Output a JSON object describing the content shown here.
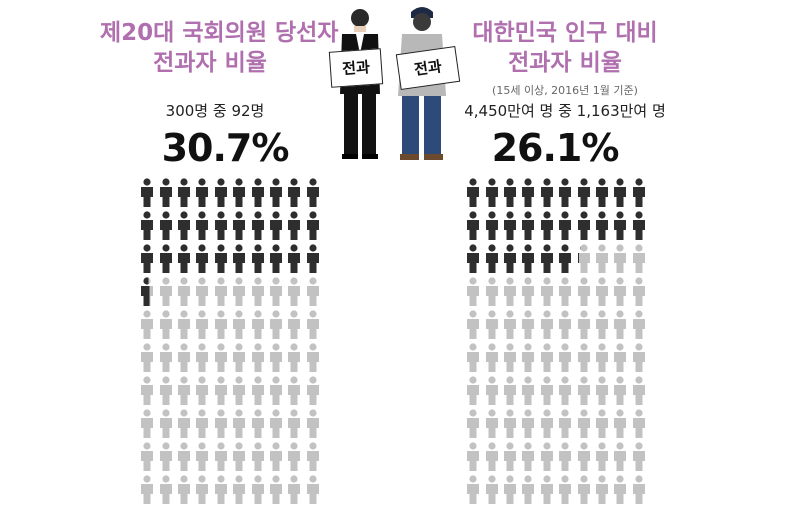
{
  "left": {
    "title_line1": "제20대 국회의원 당선자",
    "title_line2": "전과자 비율",
    "count_text": "300명 중 92명",
    "percent": "30.7%",
    "grid": {
      "rows": 10,
      "cols": 10,
      "filled": 30.7
    }
  },
  "right": {
    "title_line1": "대한민국 인구 대비",
    "title_line2": "전과자 비율",
    "note": "(15세 이상, 2016년 1월 기준)",
    "count_text": "4,450만여 명 중 1,163만여 명",
    "percent": "26.1%",
    "grid": {
      "rows": 10,
      "cols": 10,
      "filled": 26.1
    }
  },
  "illustration": {
    "sign_left": "전과",
    "sign_right": "전과"
  },
  "colors": {
    "title": "#b06fae",
    "filled": "#2e2e2e",
    "empty": "#c2c2c2"
  }
}
